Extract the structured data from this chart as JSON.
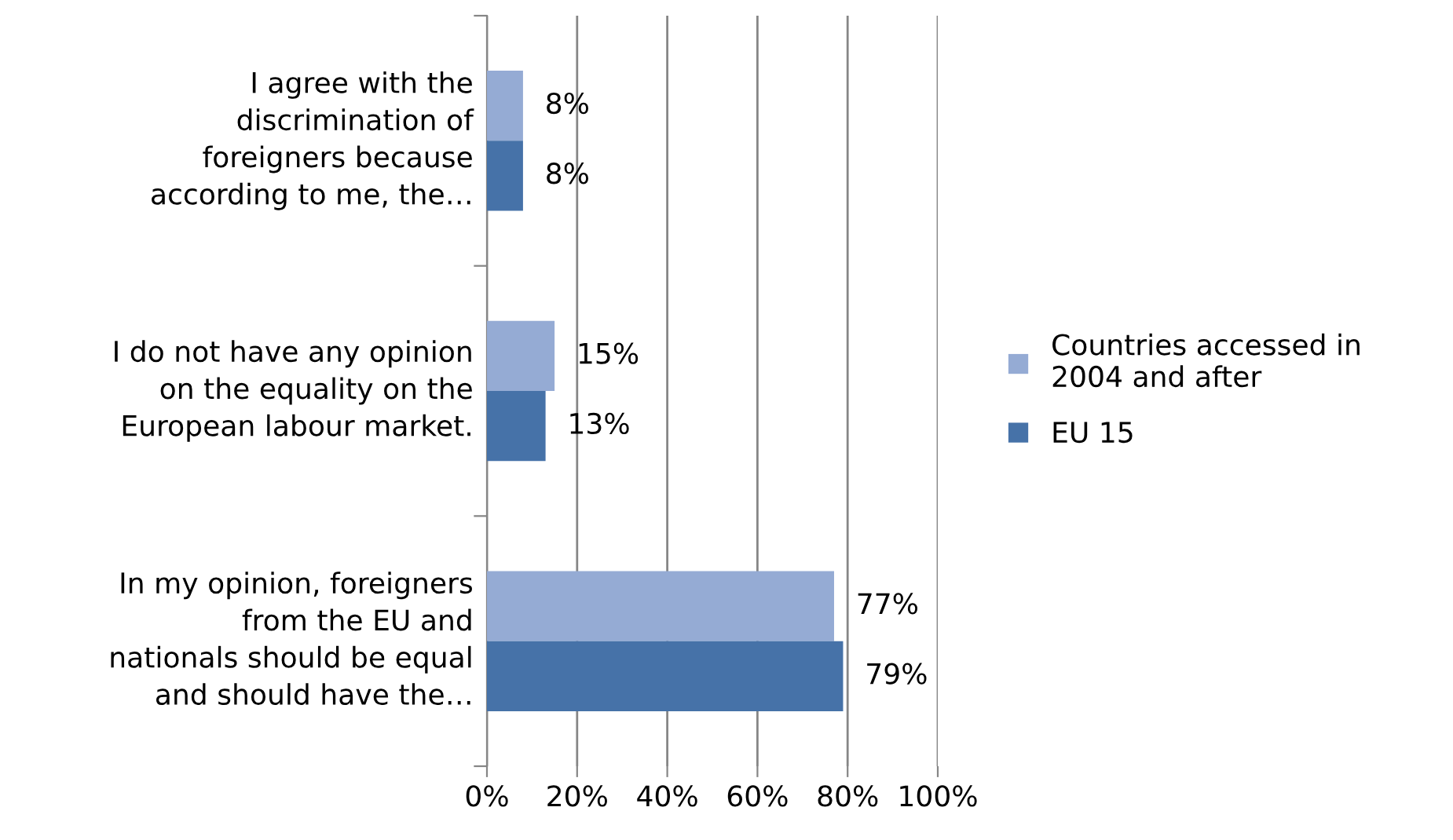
{
  "chart_data": {
    "type": "bar",
    "orientation": "horizontal",
    "categories": [
      "I agree with the\ndiscrimination of\nforeigners because\naccording to me, the…",
      "I do not have any opinion\non the equality on the\nEuropean labour market.",
      "In my opinion, foreigners\nfrom the EU and\nnationals should be equal\nand should have the…"
    ],
    "series": [
      {
        "name": "Countries accessed in\n2004 and after",
        "color": "#95abd4",
        "values": [
          8,
          15,
          77
        ],
        "value_labels": [
          "8%",
          "15%",
          "77%"
        ]
      },
      {
        "name": "EU 15",
        "color": "#4672a8",
        "values": [
          8,
          13,
          79
        ],
        "value_labels": [
          "8%",
          "13%",
          "79%"
        ]
      }
    ],
    "xlim": [
      0,
      100
    ],
    "xticks": [
      {
        "value": 0,
        "label": "0%"
      },
      {
        "value": 20,
        "label": "20%"
      },
      {
        "value": 40,
        "label": "40%"
      },
      {
        "value": 60,
        "label": "60%"
      },
      {
        "value": 80,
        "label": "80%"
      },
      {
        "value": 100,
        "label": "100%"
      }
    ],
    "grid": "x",
    "legend": "right"
  }
}
